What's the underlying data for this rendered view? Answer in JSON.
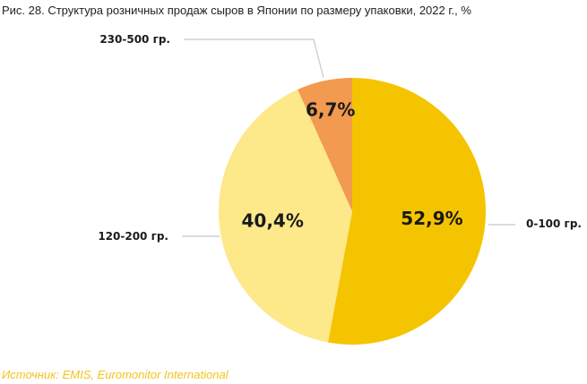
{
  "chart_data": {
    "type": "pie",
    "title": "Рис. 28. Структура розничных продаж сыров в Японии по размеру упаковки, 2022 г., %",
    "categories": [
      "0-100 гр.",
      "120-200 гр.",
      "230-500 гр."
    ],
    "values": [
      52.9,
      40.4,
      6.7
    ],
    "value_labels": [
      "52,9%",
      "40,4%",
      "6,7%"
    ],
    "colors": [
      "#f5c400",
      "#fde88a",
      "#f29a4f"
    ],
    "legend": "none"
  },
  "source": "Источник: EMIS,  Euromonitor International"
}
